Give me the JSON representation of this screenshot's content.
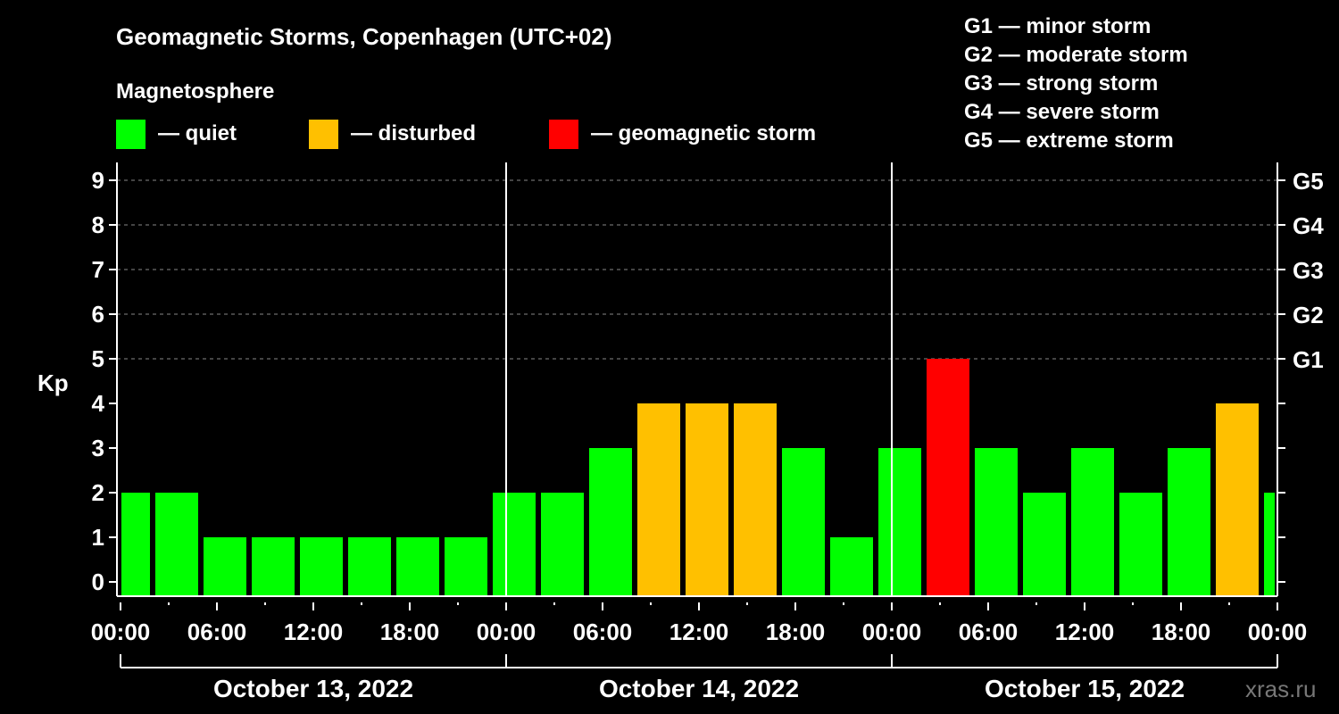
{
  "chart_data": {
    "type": "bar",
    "title": "Geomagnetic Storms, Copenhagen (UTC+02)",
    "legend_title": "Magnetosphere",
    "legend": [
      {
        "label": "— quiet",
        "color": "#00ff00"
      },
      {
        "label": "— disturbed",
        "color": "#ffc000"
      },
      {
        "label": "— geomagnetic storm",
        "color": "#ff0000"
      }
    ],
    "storm_scale": [
      "G1 — minor storm",
      "G2 — moderate storm",
      "G3 — strong storm",
      "G4 — severe storm",
      "G5 — extreme storm"
    ],
    "ylabel": "Kp",
    "ylim": [
      0,
      9
    ],
    "yticks": [
      "0",
      "1",
      "2",
      "3",
      "4",
      "5",
      "6",
      "7",
      "8",
      "9"
    ],
    "right_ticks": [
      {
        "kp": 5,
        "label": "G1"
      },
      {
        "kp": 6,
        "label": "G2"
      },
      {
        "kp": 7,
        "label": "G3"
      },
      {
        "kp": 8,
        "label": "G4"
      },
      {
        "kp": 9,
        "label": "G5"
      }
    ],
    "xlim_hours": [
      0,
      72
    ],
    "xticks": [
      "00:00",
      "06:00",
      "12:00",
      "18:00",
      "00:00",
      "06:00",
      "12:00",
      "18:00",
      "00:00",
      "06:00",
      "12:00",
      "18:00",
      "00:00"
    ],
    "days": [
      "October 13, 2022",
      "October 14, 2022",
      "October 15, 2022"
    ],
    "bar_interval_hours": 3,
    "bar_start_hour": -1,
    "values": [
      2,
      2,
      1,
      1,
      1,
      1,
      1,
      1,
      2,
      2,
      3,
      4,
      4,
      4,
      3,
      1,
      3,
      5,
      3,
      2,
      3,
      2,
      3,
      4,
      2
    ],
    "grid": "dashed at Kp 5-9",
    "watermark": "xras.ru"
  }
}
